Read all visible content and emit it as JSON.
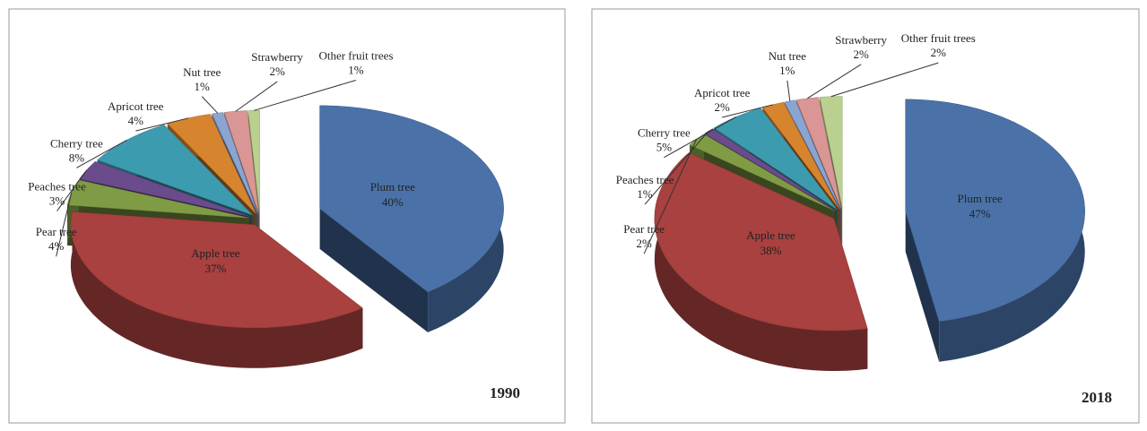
{
  "chart_data": [
    {
      "type": "pie3d",
      "title": "1990",
      "categories": [
        "Plum tree",
        "Apple tree",
        "Pear tree",
        "Peaches tree",
        "Cherry tree",
        "Apricot tree",
        "Nut tree",
        "Strawberry",
        "Other fruit trees"
      ],
      "values": [
        40,
        37,
        4,
        3,
        8,
        4,
        1,
        2,
        1
      ],
      "value_labels": [
        "40%",
        "37%",
        "4%",
        "3%",
        "8%",
        "4%",
        "1%",
        "2%",
        "1%"
      ],
      "colors": [
        "#4a72a8",
        "#a8413f",
        "#7f9c45",
        "#6a4b8c",
        "#3d9bb0",
        "#d7842f",
        "#8aa5d2",
        "#d99694",
        "#b9d08f"
      ]
    },
    {
      "type": "pie3d",
      "title": "2018",
      "categories": [
        "Plum tree",
        "Apple tree",
        "Pear tree",
        "Peaches tree",
        "Cherry tree",
        "Apricot tree",
        "Nut tree",
        "Strawberry",
        "Other fruit trees"
      ],
      "values": [
        47,
        38,
        2,
        1,
        5,
        2,
        1,
        2,
        2
      ],
      "value_labels": [
        "47%",
        "38%",
        "2%",
        "1%",
        "5%",
        "2%",
        "1%",
        "2%",
        "2%"
      ],
      "colors": [
        "#4a72a8",
        "#a8413f",
        "#7f9c45",
        "#6a4b8c",
        "#3d9bb0",
        "#d7842f",
        "#8aa5d2",
        "#d99694",
        "#b9d08f"
      ]
    }
  ]
}
